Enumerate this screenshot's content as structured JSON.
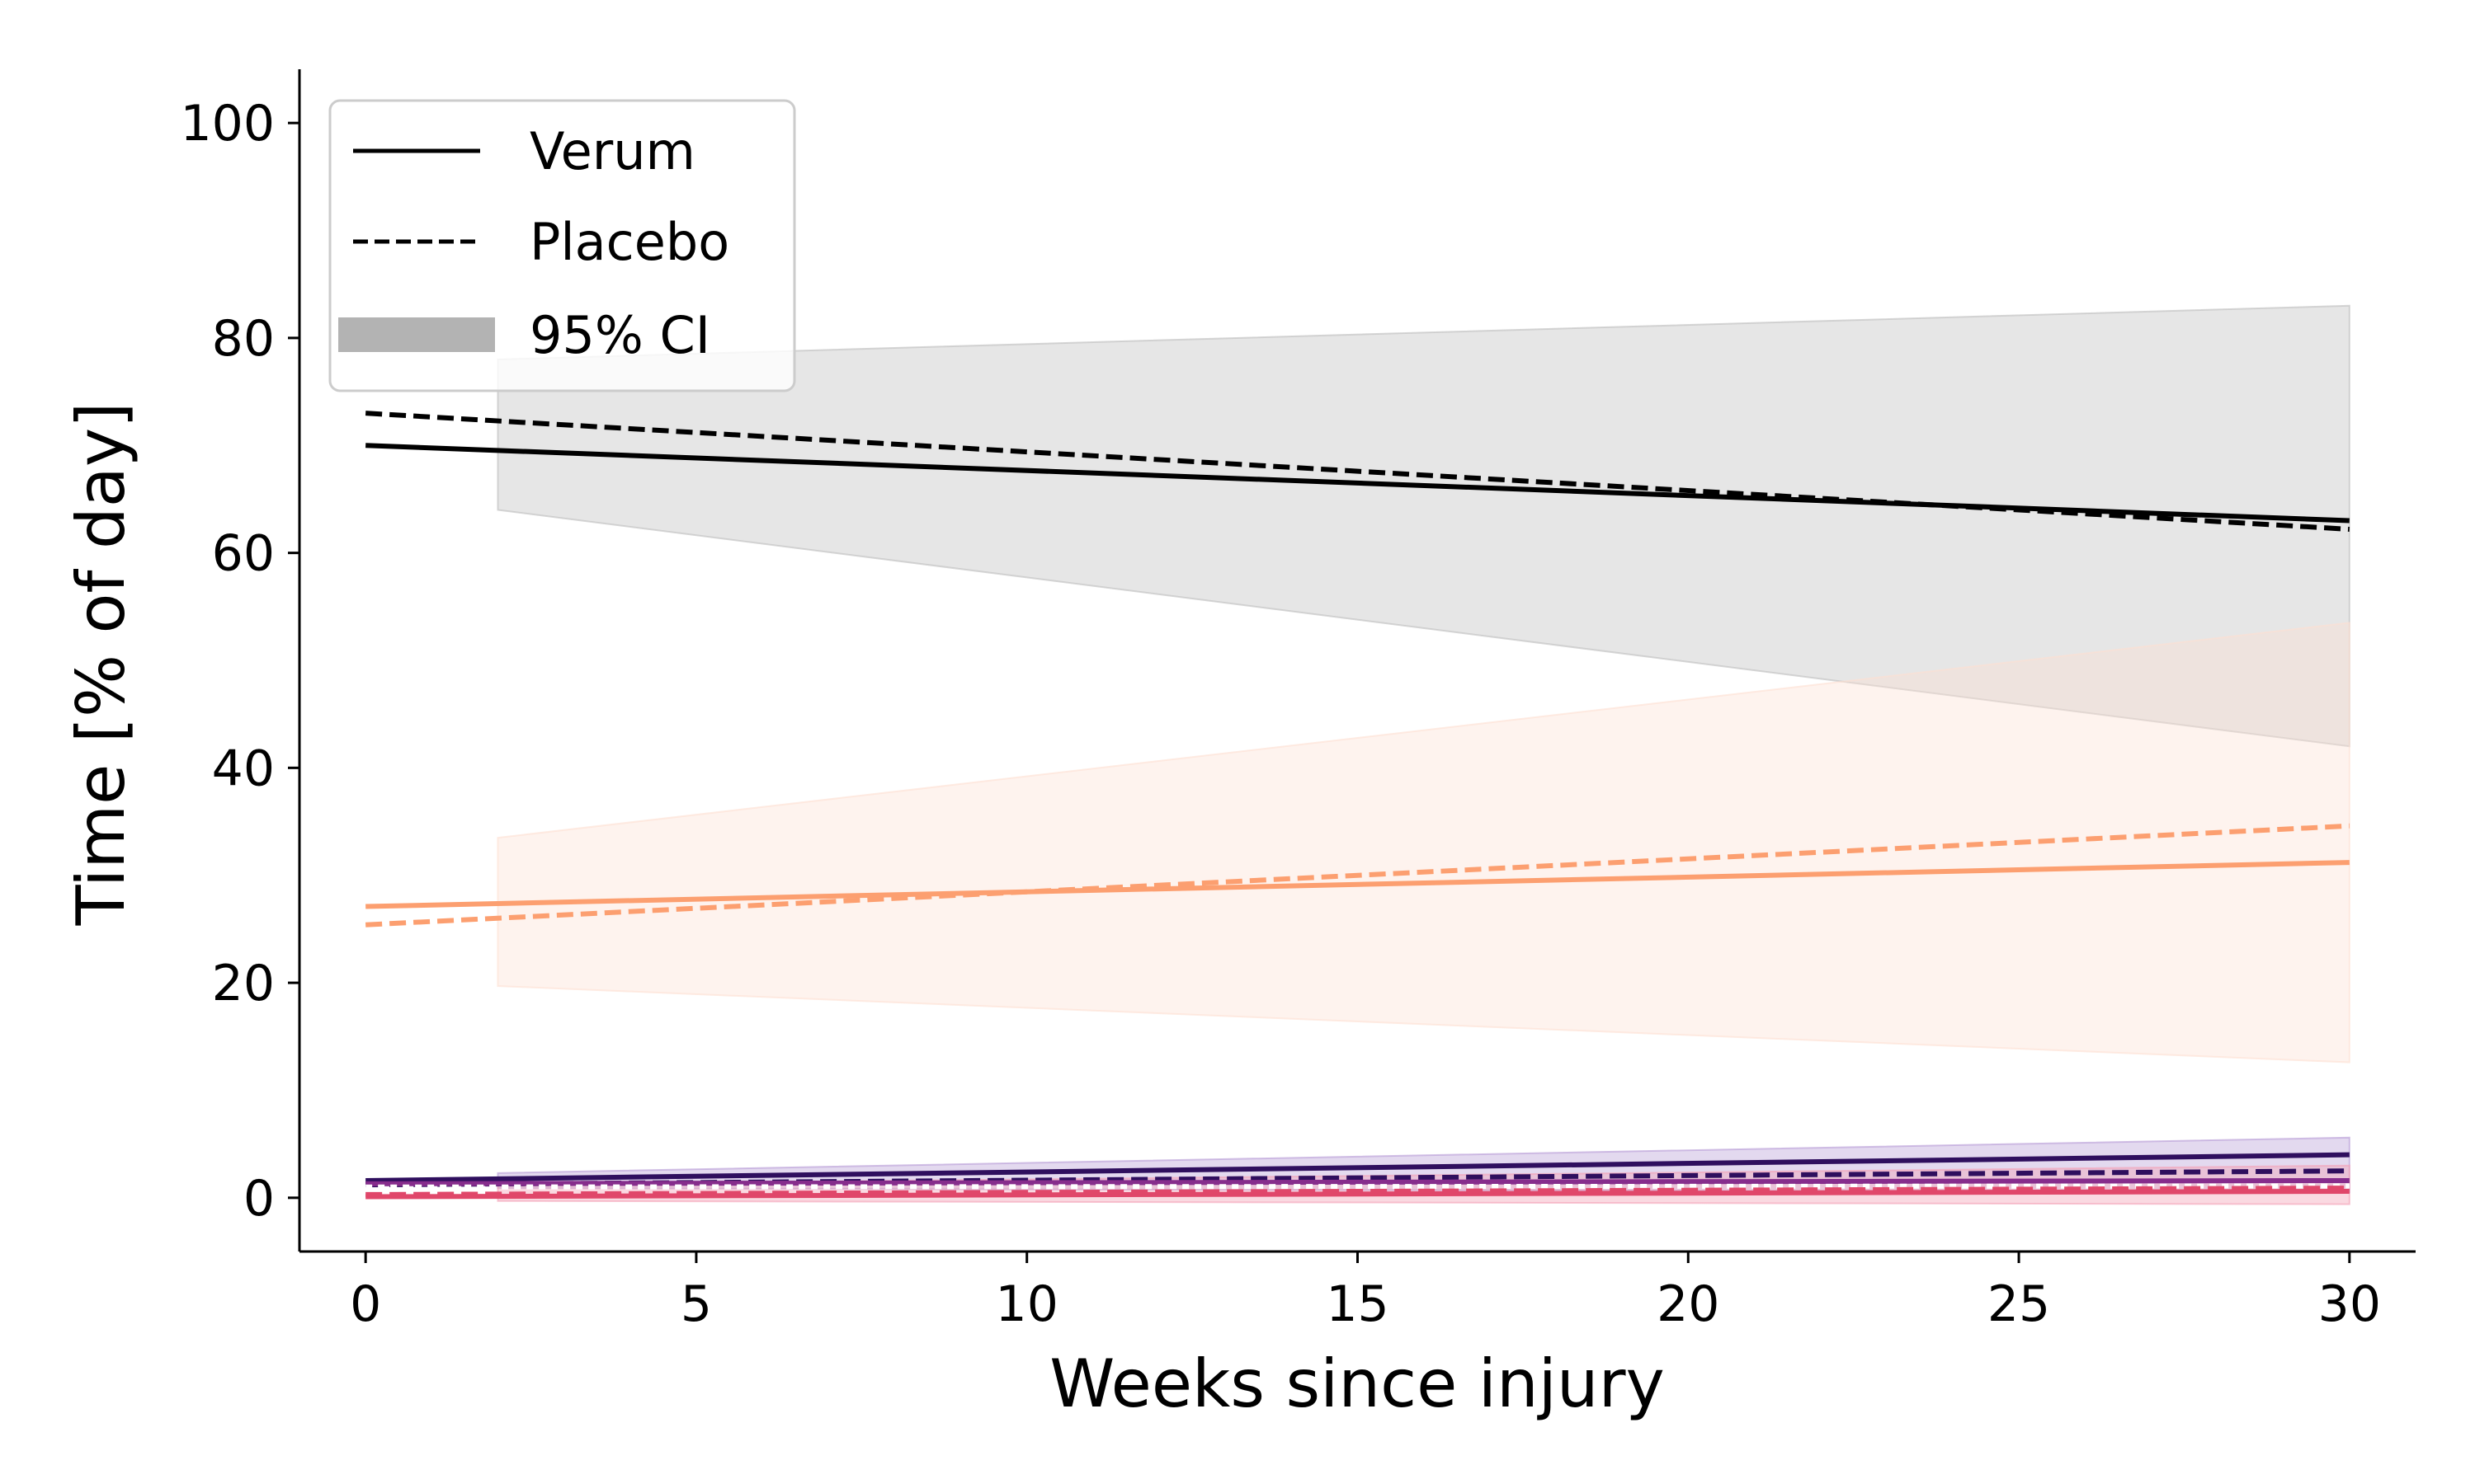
{
  "chart_data": {
    "type": "line",
    "title": "",
    "xlabel": "Weeks since injury",
    "ylabel": "Time [% of day]",
    "xlim": [
      -1,
      31
    ],
    "ylim": [
      -5,
      105
    ],
    "xticks": [
      0,
      5,
      10,
      15,
      20,
      25,
      30
    ],
    "yticks": [
      0,
      20,
      40,
      60,
      80,
      100
    ],
    "grid": false,
    "legend": {
      "placement": "top-left",
      "entries": [
        {
          "label": "Verum",
          "style": "solid"
        },
        {
          "label": "Placebo",
          "style": "dashed"
        },
        {
          "label": "95% CI",
          "style": "band"
        }
      ]
    },
    "bands": [
      {
        "color": "#bdbdbd",
        "opacity": 0.38,
        "x": [
          2,
          30
        ],
        "lower": [
          64,
          42
        ],
        "upper": [
          78,
          83
        ]
      },
      {
        "color": "#fde0d2",
        "opacity": 0.38,
        "x": [
          2,
          30
        ],
        "lower": [
          19.7,
          12.6
        ],
        "upper": [
          33.5,
          53.5
        ]
      },
      {
        "color": "#b59ad6",
        "opacity": 0.38,
        "x": [
          2,
          30
        ],
        "lower": [
          0.9,
          0.5
        ],
        "upper": [
          2.3,
          5.6
        ]
      },
      {
        "color": "#f3a0b5",
        "opacity": 0.4,
        "x": [
          2,
          30
        ],
        "lower": [
          -0.3,
          -0.6
        ],
        "upper": [
          1.2,
          3.0
        ]
      }
    ],
    "series": [
      {
        "group": "Verum",
        "color": "#000000",
        "dash": "solid",
        "x": [
          0,
          30
        ],
        "y": [
          70,
          63
        ]
      },
      {
        "group": "Placebo",
        "color": "#000000",
        "dash": "dashed",
        "x": [
          0,
          30
        ],
        "y": [
          73,
          62.2
        ]
      },
      {
        "group": "Verum",
        "color": "#fc9f70",
        "dash": "solid",
        "x": [
          0,
          30
        ],
        "y": [
          27.1,
          31.2
        ]
      },
      {
        "group": "Placebo",
        "color": "#fc9f70",
        "dash": "dashed",
        "x": [
          0,
          30
        ],
        "y": [
          25.4,
          34.6
        ]
      },
      {
        "group": "Verum",
        "color": "#2f0f5e",
        "dash": "solid",
        "x": [
          0,
          30
        ],
        "y": [
          1.6,
          4.0
        ]
      },
      {
        "group": "Placebo",
        "color": "#2f0f5e",
        "dash": "dashed",
        "x": [
          0,
          30
        ],
        "y": [
          1.2,
          2.5
        ]
      },
      {
        "group": "Verum",
        "color": "#862d8c",
        "dash": "solid",
        "x": [
          0,
          30
        ],
        "y": [
          1.3,
          1.6
        ]
      },
      {
        "group": "Placebo",
        "color": "#ffffff",
        "dash": "dotted",
        "x": [
          0,
          30
        ],
        "y": [
          1.0,
          1.1
        ]
      },
      {
        "group": "Verum",
        "color": "#e0476a",
        "dash": "solid",
        "x": [
          0,
          30
        ],
        "y": [
          0.1,
          0.6
        ]
      },
      {
        "group": "Placebo",
        "color": "#e0476a",
        "dash": "dashed",
        "x": [
          0,
          30
        ],
        "y": [
          0.3,
          0.9
        ]
      }
    ]
  }
}
